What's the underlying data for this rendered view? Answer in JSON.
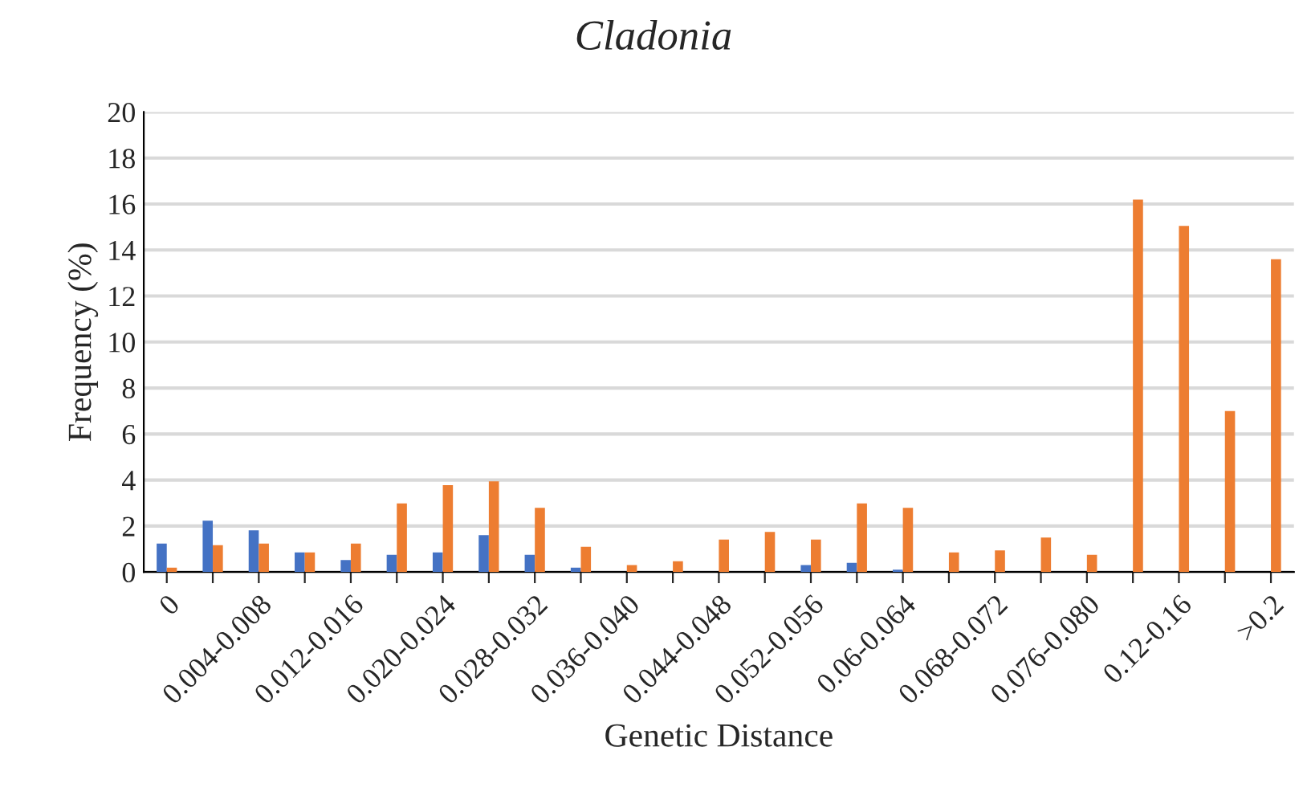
{
  "chart_data": {
    "type": "bar",
    "title": "Cladonia",
    "xlabel": "Genetic Distance",
    "ylabel": "Frequency (%)",
    "categories": [
      "0",
      null,
      "0.004-0.008",
      null,
      "0.012-0.016",
      null,
      "0.020-0.024",
      null,
      "0.028-0.032",
      null,
      "0.036-0.040",
      null,
      "0.044-0.048",
      null,
      "0.052-0.056",
      null,
      "0.06-0.064",
      null,
      "0.068-0.072",
      null,
      "0.076-0.080",
      null,
      "0.12-0.16",
      null,
      ">0.2"
    ],
    "series": [
      {
        "color": "#4472c4",
        "values": [
          1.24,
          2.23,
          1.81,
          0.85,
          0.52,
          0.75,
          0.85,
          1.6,
          0.75,
          0.19,
          0,
          0,
          0,
          0,
          0.3,
          0.4,
          0.1,
          0,
          0,
          0,
          0,
          0,
          0,
          0,
          0
        ]
      },
      {
        "color": "#ed7d31",
        "values": [
          0.19,
          1.17,
          1.24,
          0.85,
          1.24,
          2.98,
          3.78,
          3.94,
          2.79,
          1.1,
          0.3,
          0.47,
          1.41,
          1.74,
          1.41,
          2.98,
          2.79,
          0.85,
          0.94,
          1.5,
          0.75,
          16.19,
          15.05,
          7.0,
          13.6
        ]
      }
    ],
    "ylim": [
      0,
      20
    ],
    "yticks": [
      0,
      2,
      4,
      6,
      8,
      10,
      12,
      14,
      16,
      18,
      20
    ],
    "grid": "y",
    "legend": false
  }
}
